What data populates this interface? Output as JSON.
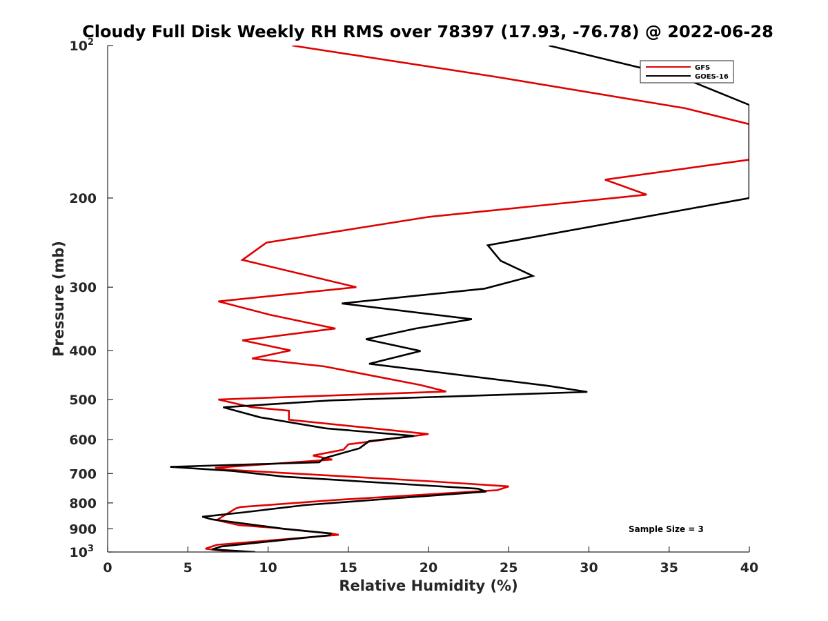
{
  "chart_data": {
    "type": "line",
    "title": "Cloudy Full Disk Weekly RH RMS over 78397 (17.93, -76.78) @ 2022-06-28",
    "xlabel": "Relative Humidity (%)",
    "ylabel": "Pressure (mb)",
    "xlim": [
      0,
      40
    ],
    "ylim": [
      100,
      1000
    ],
    "yscale": "log",
    "y_reversed": true,
    "grid": false,
    "legend_position": "top-right",
    "x_ticks": [
      "0",
      "5",
      "10",
      "15",
      "20",
      "25",
      "30",
      "35",
      "40"
    ],
    "y_ticks": [
      {
        "value": 100,
        "base": "10",
        "exp": "2"
      },
      {
        "value": 200,
        "label": "200"
      },
      {
        "value": 300,
        "label": "300"
      },
      {
        "value": 400,
        "label": "400"
      },
      {
        "value": 500,
        "label": "500"
      },
      {
        "value": 600,
        "label": "600"
      },
      {
        "value": 700,
        "label": "700"
      },
      {
        "value": 800,
        "label": "800"
      },
      {
        "value": 900,
        "label": "900"
      },
      {
        "value": 1000,
        "base": "10",
        "exp": "3"
      }
    ],
    "annotation": "Sample Size = 3",
    "series": [
      {
        "name": "GFS",
        "color": "#e00000",
        "points": [
          [
            7.8,
            1000
          ],
          [
            6.1,
            985
          ],
          [
            6.8,
            968
          ],
          [
            14.4,
            925
          ],
          [
            14.0,
            920
          ],
          [
            10.2,
            895
          ],
          [
            8.2,
            885
          ],
          [
            6.8,
            865
          ],
          [
            8.0,
            820
          ],
          [
            8.3,
            815
          ],
          [
            14.0,
            790
          ],
          [
            24.3,
            755
          ],
          [
            25.0,
            742
          ],
          [
            20.1,
            725
          ],
          [
            7.5,
            688
          ],
          [
            6.7,
            682
          ],
          [
            14.0,
            657
          ],
          [
            12.8,
            645
          ],
          [
            14.7,
            628
          ],
          [
            15.0,
            613
          ],
          [
            20.0,
            585
          ],
          [
            11.3,
            548
          ],
          [
            11.3,
            526
          ],
          [
            9.0,
            518
          ],
          [
            6.9,
            500
          ],
          [
            21.1,
            482
          ],
          [
            19.5,
            468
          ],
          [
            13.5,
            430
          ],
          [
            9.0,
            415
          ],
          [
            11.4,
            400
          ],
          [
            8.4,
            382
          ],
          [
            14.2,
            362
          ],
          [
            10.1,
            340
          ],
          [
            6.9,
            320
          ],
          [
            15.5,
            300
          ],
          [
            8.4,
            265
          ],
          [
            9.9,
            245
          ],
          [
            20.0,
            218
          ],
          [
            33.6,
            197
          ],
          [
            31.0,
            184
          ],
          [
            40.0,
            168
          ]
        ],
        "continues_above": [
          [
            40.0,
            143
          ],
          [
            36.0,
            133
          ],
          [
            24.0,
            115
          ],
          [
            11.5,
            100
          ]
        ]
      },
      {
        "name": "GOES-16",
        "color": "#000000",
        "points": [
          [
            9.2,
            1000
          ],
          [
            6.5,
            988
          ],
          [
            7.1,
            975
          ],
          [
            13.8,
            927
          ],
          [
            13.9,
            919
          ],
          [
            11.0,
            900
          ],
          [
            6.5,
            862
          ],
          [
            5.9,
            852
          ],
          [
            8.5,
            835
          ],
          [
            12.3,
            808
          ],
          [
            18.0,
            783
          ],
          [
            23.6,
            760
          ],
          [
            23.1,
            750
          ],
          [
            11.0,
            710
          ],
          [
            7.8,
            692
          ],
          [
            3.9,
            679
          ],
          [
            13.2,
            665
          ],
          [
            13.4,
            655
          ],
          [
            13.7,
            650
          ],
          [
            15.7,
            624
          ],
          [
            16.3,
            604
          ],
          [
            19.1,
            590
          ],
          [
            13.6,
            570
          ],
          [
            9.5,
            542
          ],
          [
            7.2,
            518
          ],
          [
            13.9,
            502
          ],
          [
            29.9,
            483
          ],
          [
            27.5,
            470
          ],
          [
            16.3,
            425
          ],
          [
            19.5,
            401
          ],
          [
            16.1,
            380
          ],
          [
            19.2,
            362
          ],
          [
            22.7,
            347
          ],
          [
            14.6,
            323
          ],
          [
            23.5,
            302
          ],
          [
            26.5,
            285
          ],
          [
            24.5,
            266
          ],
          [
            23.7,
            248
          ],
          [
            40.0,
            200
          ]
        ],
        "continues_above": [
          [
            40.0,
            131
          ],
          [
            35.9,
            116
          ],
          [
            27.5,
            100
          ]
        ]
      }
    ]
  }
}
